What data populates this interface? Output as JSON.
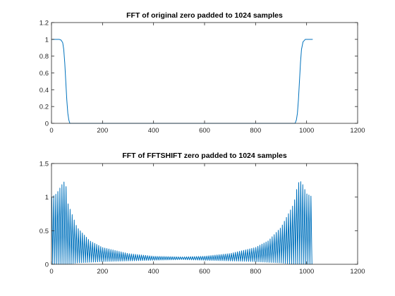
{
  "chart_data": [
    {
      "type": "line",
      "title": "FFT of original zero padded to 1024 samples",
      "xlabel": "",
      "ylabel": "",
      "xlim": [
        0,
        1200
      ],
      "ylim": [
        0,
        1.2
      ],
      "xticks": [
        0,
        200,
        400,
        600,
        800,
        1000,
        1200
      ],
      "yticks": [
        0,
        0.2,
        0.4,
        0.6,
        0.8,
        1,
        1.2
      ],
      "xtick_labels": [
        "0",
        "200",
        "400",
        "600",
        "800",
        "1000",
        "1200"
      ],
      "ytick_labels": [
        "0",
        "0.2",
        "0.4",
        "0.6",
        "0.8",
        "1",
        "1.2"
      ],
      "grid": false,
      "line_color": "#0072BD",
      "series": [
        {
          "x": [
            1,
            10,
            20,
            30,
            38,
            44,
            48,
            52,
            56,
            60,
            64,
            68,
            72,
            100,
            300,
            500,
            700,
            900,
            955,
            960,
            964,
            968,
            972,
            976,
            980,
            986,
            995,
            1010,
            1024
          ],
          "values": [
            1.0,
            1.0,
            1.0,
            1.0,
            0.99,
            0.96,
            0.88,
            0.72,
            0.5,
            0.28,
            0.12,
            0.04,
            0.0,
            0.0,
            0.0,
            0.0,
            0.0,
            0.0,
            0.0,
            0.04,
            0.12,
            0.28,
            0.5,
            0.72,
            0.88,
            0.97,
            1.0,
            1.0,
            1.0
          ]
        }
      ]
    },
    {
      "type": "line",
      "title": "FFT of FFTSHIFT zero padded to 1024 samples",
      "xlabel": "",
      "ylabel": "",
      "xlim": [
        0,
        1200
      ],
      "ylim": [
        0,
        1.5
      ],
      "xticks": [
        0,
        200,
        400,
        600,
        800,
        1000,
        1200
      ],
      "yticks": [
        0,
        0.5,
        1,
        1.5
      ],
      "xtick_labels": [
        "0",
        "200",
        "400",
        "600",
        "800",
        "1000",
        "1200"
      ],
      "ytick_labels": [
        "0",
        "0.5",
        "1",
        "1.5"
      ],
      "grid": false,
      "line_color": "#0072BD",
      "series": [
        {
          "x": [
            1,
            20,
            40,
            50,
            55,
            65,
            100,
            150,
            200,
            300,
            400,
            512,
            600,
            700,
            800,
            850,
            900,
            950,
            960,
            970,
            980,
            1000,
            1024
          ],
          "upper": [
            1.0,
            1.05,
            1.18,
            1.23,
            1.22,
            0.9,
            0.55,
            0.35,
            0.25,
            0.16,
            0.12,
            0.11,
            0.12,
            0.16,
            0.25,
            0.35,
            0.55,
            0.9,
            1.1,
            1.23,
            1.23,
            1.05,
            1.0
          ],
          "lower": [
            0.0,
            0.0,
            0.0,
            0.0,
            0.0,
            0.0,
            0.02,
            0.03,
            0.04,
            0.05,
            0.06,
            0.07,
            0.06,
            0.05,
            0.04,
            0.03,
            0.02,
            0.0,
            0.0,
            0.0,
            0.0,
            0.0,
            0.0
          ],
          "oscillation_period_samples": 8
        }
      ]
    }
  ]
}
